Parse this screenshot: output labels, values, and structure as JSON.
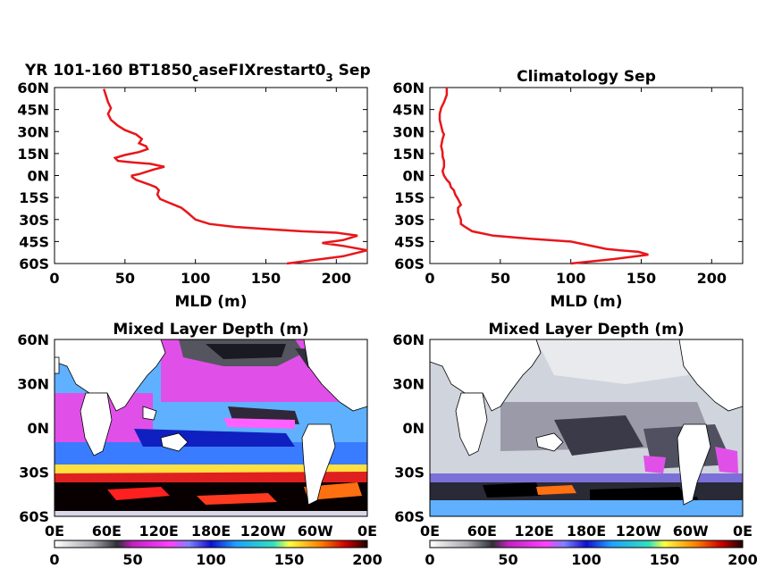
{
  "chart_data": [
    {
      "type": "line",
      "title_main": "YR 101-160 BT1850",
      "title_sub1": "c",
      "title_mid": "aseFIXrestart0",
      "title_sub2": "3",
      "title_end": " Sep",
      "xlabel": "MLD (m)",
      "xlim": [
        0,
        222
      ],
      "ylim": [
        -60,
        60
      ],
      "xticks": [
        "0",
        "50",
        "100",
        "150",
        "200"
      ],
      "yticks": [
        "60N",
        "45N",
        "30N",
        "15N",
        "0N",
        "15S",
        "30S",
        "45S",
        "60S"
      ],
      "line_color": "#e8161a",
      "series": [
        {
          "x": [
            165,
            205,
            222,
            205,
            190,
            205,
            215,
            200,
            175,
            150,
            128,
            110,
            100,
            94,
            90,
            85,
            80,
            75,
            73,
            74,
            72,
            67,
            58,
            55,
            55,
            60,
            70,
            78,
            68,
            55,
            45,
            43,
            50,
            60,
            66,
            65,
            60,
            62,
            58,
            50,
            45,
            40,
            38,
            40,
            38,
            35
          ],
          "y": [
            -60,
            -55,
            -51,
            -48,
            -46,
            -44,
            -41,
            -39,
            -38,
            -36.5,
            -35,
            -33,
            -30,
            -25,
            -22,
            -20,
            -18,
            -16,
            -13,
            -10,
            -8,
            -6,
            -3,
            -1,
            0,
            1,
            4,
            6,
            8,
            9,
            10,
            12,
            14,
            16,
            18,
            20,
            22,
            25,
            28,
            31,
            34,
            38,
            42,
            46,
            50,
            59
          ]
        }
      ]
    },
    {
      "type": "line",
      "title": "Climatology Sep",
      "xlabel": "MLD (m)",
      "xlim": [
        0,
        222
      ],
      "ylim": [
        -60,
        60
      ],
      "xticks": [
        "0",
        "50",
        "100",
        "150",
        "200"
      ],
      "yticks": [
        "60N",
        "45N",
        "30N",
        "15N",
        "0N",
        "15S",
        "30S",
        "45S",
        "60S"
      ],
      "line_color": "#e8161a",
      "series": [
        {
          "x": [
            100,
            130,
            155,
            148,
            135,
            125,
            100,
            70,
            45,
            30,
            25,
            22,
            22,
            20,
            20,
            22,
            20,
            18,
            17,
            15,
            14,
            12,
            10,
            9,
            10,
            10,
            9,
            9,
            8,
            9,
            10,
            9,
            8,
            7,
            7,
            8,
            10,
            12,
            12
          ],
          "y": [
            -60,
            -57,
            -54,
            -52,
            -51,
            -50,
            -45,
            -43,
            -41,
            -38,
            -35,
            -33,
            -30,
            -25,
            -22,
            -20,
            -16,
            -13,
            -10,
            -8,
            -5,
            -3,
            0,
            3,
            6,
            10,
            13,
            16,
            20,
            25,
            28,
            30,
            34,
            38,
            42,
            46,
            50,
            55,
            60
          ]
        }
      ]
    },
    {
      "type": "heatmap",
      "title": "Mixed Layer Depth (m)",
      "lon_ticks": [
        "0E",
        "60E",
        "120E",
        "180E",
        "120W",
        "60W",
        "0E"
      ],
      "lat_ticks": [
        "60N",
        "30N",
        "0N",
        "30S",
        "60S"
      ],
      "colorbar_ticks": [
        "0",
        "50",
        "100",
        "150",
        "200"
      ],
      "clim": [
        0,
        200
      ]
    },
    {
      "type": "heatmap",
      "title": "Mixed Layer Depth (m)",
      "lon_ticks": [
        "0E",
        "60E",
        "120E",
        "180E",
        "120W",
        "60W",
        "0E"
      ],
      "lat_ticks": [
        "60N",
        "30N",
        "0N",
        "30S",
        "60S"
      ],
      "colorbar_ticks": [
        "0",
        "50",
        "100",
        "150",
        "200"
      ],
      "clim": [
        0,
        200
      ]
    }
  ]
}
